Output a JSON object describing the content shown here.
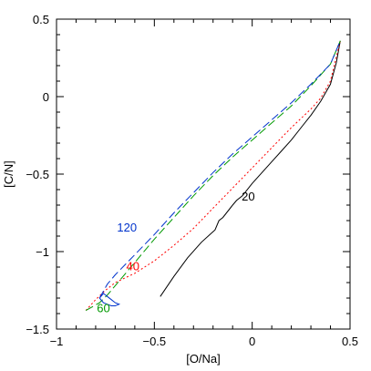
{
  "chart_data": {
    "type": "line",
    "title": "",
    "xlabel": "[O/Na]",
    "ylabel": "[C/N]",
    "xlim": [
      -1,
      0.5
    ],
    "ylim": [
      -1.5,
      0.5
    ],
    "grid": false,
    "x_major_ticks": [
      -1,
      -0.5,
      0,
      0.5
    ],
    "y_major_ticks": [
      -1.5,
      -1,
      -0.5,
      0,
      0.5
    ],
    "x_tick_labels": [
      "−1",
      "−0.5",
      "0",
      "0.5"
    ],
    "y_tick_labels": [
      "−1.5",
      "−1",
      "−0.5",
      "0",
      "0.5"
    ],
    "series": [
      {
        "label": "20",
        "color": "#000000",
        "style": "solid",
        "x": [
          -0.47,
          -0.4,
          -0.33,
          -0.26,
          -0.19,
          -0.17,
          -0.15,
          -0.1,
          -0.08,
          -0.05,
          0.0,
          0.05,
          0.1,
          0.15,
          0.2,
          0.25,
          0.3,
          0.35,
          0.4,
          0.43,
          0.45
        ],
        "y": [
          -1.29,
          -1.16,
          -1.04,
          -0.94,
          -0.86,
          -0.8,
          -0.78,
          -0.7,
          -0.67,
          -0.64,
          -0.56,
          -0.49,
          -0.42,
          -0.35,
          -0.28,
          -0.2,
          -0.12,
          -0.03,
          0.08,
          0.22,
          0.36
        ]
      },
      {
        "label": "40",
        "color": "#ff0000",
        "style": "dotted",
        "x": [
          -0.85,
          -0.8,
          -0.75,
          -0.7,
          -0.6,
          -0.5,
          -0.4,
          -0.3,
          -0.2,
          -0.1,
          0.0,
          0.1,
          0.2,
          0.3,
          0.35,
          0.4,
          0.45
        ],
        "y": [
          -1.38,
          -1.31,
          -1.25,
          -1.2,
          -1.14,
          -1.06,
          -0.96,
          -0.85,
          -0.72,
          -0.59,
          -0.46,
          -0.33,
          -0.2,
          -0.08,
          -0.01,
          0.1,
          0.36
        ]
      },
      {
        "label": "60",
        "color": "#009900",
        "style": "dashed",
        "x": [
          -0.85,
          -0.78,
          -0.74,
          -0.7,
          -0.6,
          -0.5,
          -0.4,
          -0.3,
          -0.2,
          -0.1,
          0.0,
          0.1,
          0.2,
          0.3,
          0.4,
          0.45
        ],
        "y": [
          -1.38,
          -1.33,
          -1.28,
          -1.22,
          -1.07,
          -0.92,
          -0.78,
          -0.64,
          -0.51,
          -0.39,
          -0.28,
          -0.17,
          -0.06,
          0.07,
          0.21,
          0.36
        ]
      },
      {
        "label": "120",
        "color": "#0033cc",
        "style": "dashed",
        "x": [
          -0.78,
          -0.74,
          -0.7,
          -0.6,
          -0.5,
          -0.4,
          -0.3,
          -0.2,
          -0.1,
          0.0,
          0.1,
          0.2,
          0.3,
          0.4,
          0.45
        ],
        "y": [
          -1.3,
          -1.21,
          -1.15,
          -1.02,
          -0.89,
          -0.75,
          -0.62,
          -0.49,
          -0.37,
          -0.26,
          -0.15,
          -0.04,
          0.08,
          0.21,
          0.36
        ]
      },
      {
        "label": "",
        "color": "#0033cc",
        "style": "solid",
        "x": [
          -0.78,
          -0.76,
          -0.74,
          -0.72,
          -0.7,
          -0.68,
          -0.7,
          -0.72,
          -0.74,
          -0.76,
          -0.78
        ],
        "y": [
          -1.3,
          -1.27,
          -1.29,
          -1.31,
          -1.33,
          -1.34,
          -1.35,
          -1.35,
          -1.34,
          -1.33,
          -1.3
        ]
      }
    ],
    "annotations": [
      {
        "text": "20",
        "x": -0.02,
        "y": -0.67,
        "color": "#000000"
      },
      {
        "text": "40",
        "x": -0.61,
        "y": -1.12,
        "color": "#ff0000"
      },
      {
        "text": "60",
        "x": -0.76,
        "y": -1.39,
        "color": "#009900"
      },
      {
        "text": "120",
        "x": -0.64,
        "y": -0.87,
        "color": "#0033cc"
      }
    ]
  }
}
